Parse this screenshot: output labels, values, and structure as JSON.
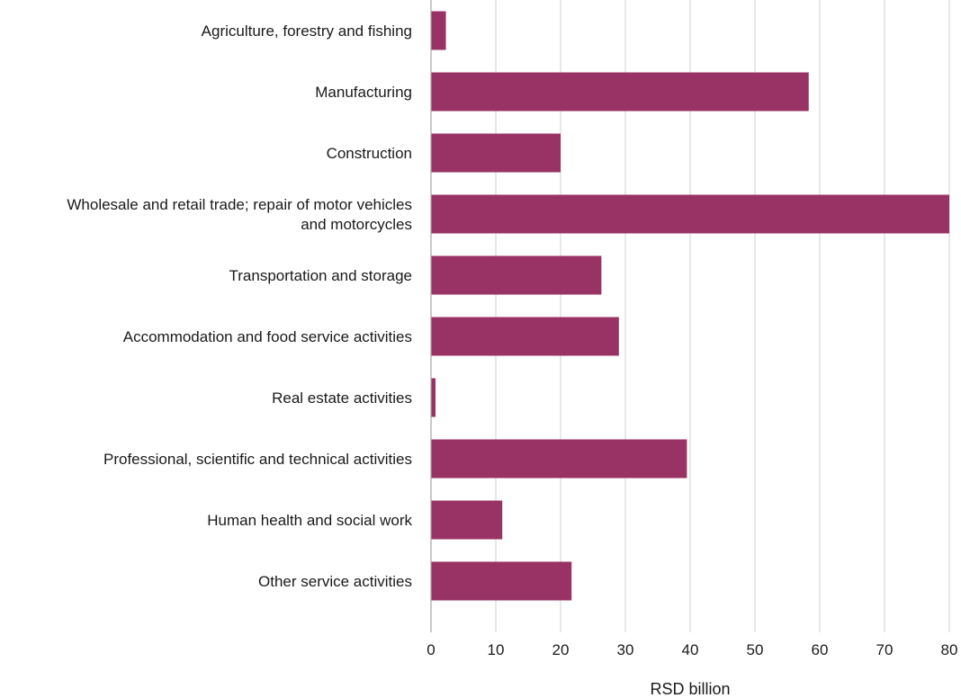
{
  "chart_data": {
    "type": "bar",
    "orientation": "horizontal",
    "categories": [
      [
        "Agriculture, forestry and fishing"
      ],
      [
        "Manufacturing"
      ],
      [
        "Construction"
      ],
      [
        "Wholesale and retail trade; repair of motor vehicles",
        "and motorcycles"
      ],
      [
        "Transportation and storage"
      ],
      [
        "Accommodation and food service activities"
      ],
      [
        "Real estate activities"
      ],
      [
        "Professional, scientific and technical activities"
      ],
      [
        "Human health and social work"
      ],
      [
        "Other service activities"
      ]
    ],
    "values": [
      2.3,
      58.3,
      20.0,
      80.0,
      26.3,
      29.0,
      0.7,
      39.5,
      11.0,
      21.7
    ],
    "xlabel": "RSD billion",
    "xlim": [
      0,
      80
    ],
    "xticks": [
      0,
      10,
      20,
      30,
      40,
      50,
      60,
      70,
      80
    ],
    "grid": "vertical",
    "legend": "none",
    "colors": {
      "bar": "#993366",
      "grid": "#d9d9d9",
      "axis": "#a6a6a6"
    }
  }
}
